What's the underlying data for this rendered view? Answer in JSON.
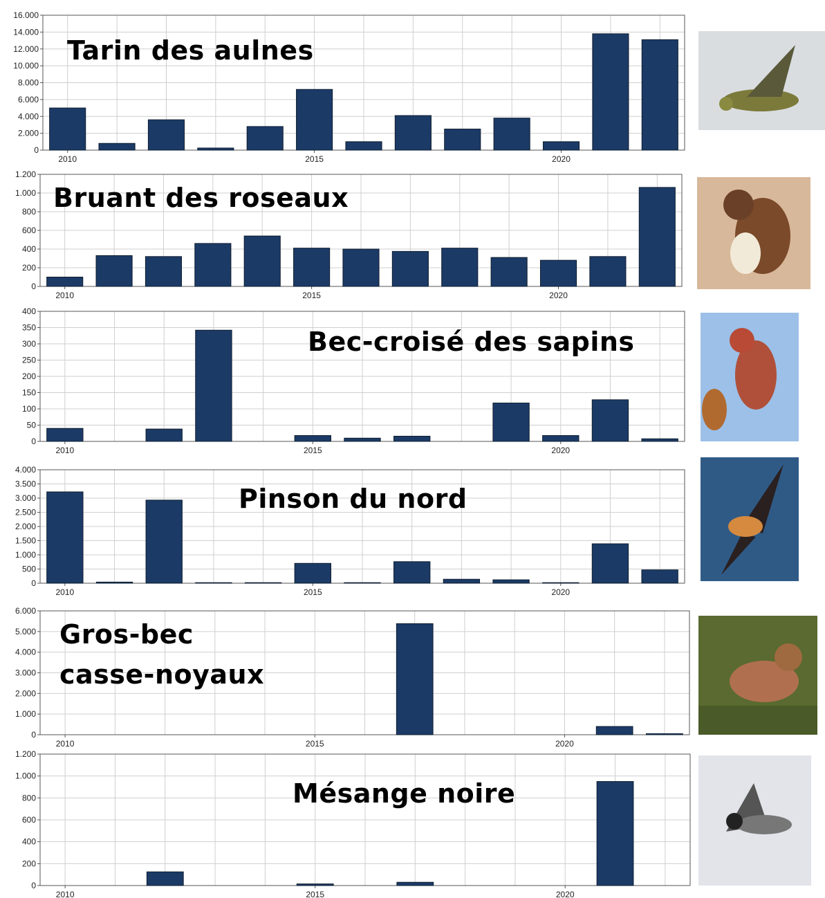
{
  "chart_data": [
    {
      "type": "bar",
      "title": "Tarin des aulnes",
      "x": [
        2010,
        2011,
        2012,
        2013,
        2014,
        2015,
        2016,
        2017,
        2018,
        2019,
        2020,
        2021,
        2022
      ],
      "values": [
        5000,
        800,
        3600,
        250,
        2800,
        7200,
        1000,
        4100,
        2500,
        3800,
        1000,
        13800,
        13100
      ],
      "color": "#1c3a66",
      "xlim": [
        2009.5,
        2022.5
      ],
      "xticks": [
        2010,
        2015,
        2020
      ],
      "ylim": [
        0,
        16000
      ],
      "yticks": [
        0,
        {
          "value": 2000,
          "label": "2.000"
        },
        {
          "value": 4000,
          "label": "4.000"
        },
        {
          "value": 6000,
          "label": "6.000"
        },
        {
          "value": 8000,
          "label": "8.000"
        },
        {
          "value": 10000,
          "label": "10.000"
        },
        {
          "value": 12000,
          "label": "12.000"
        },
        {
          "value": 14000,
          "label": "14.000"
        },
        {
          "value": 16000,
          "label": "16.000"
        }
      ],
      "grid": true
    },
    {
      "type": "bar",
      "title": "Bruant des roseaux",
      "x": [
        2010,
        2011,
        2012,
        2013,
        2014,
        2015,
        2016,
        2017,
        2018,
        2019,
        2020,
        2021,
        2022
      ],
      "values": [
        100,
        330,
        320,
        460,
        540,
        410,
        400,
        375,
        410,
        310,
        280,
        320,
        1060
      ],
      "color": "#1c3a66",
      "xlim": [
        2009.5,
        2022.5
      ],
      "xticks": [
        2010,
        2015,
        2020
      ],
      "ylim": [
        0,
        1200
      ],
      "yticks": [
        0,
        200,
        400,
        600,
        800,
        {
          "value": 1000,
          "label": "1.000"
        },
        {
          "value": 1200,
          "label": "1.200"
        }
      ],
      "grid": true
    },
    {
      "type": "bar",
      "title": "Bec-croisé des sapins",
      "x": [
        2010,
        2011,
        2012,
        2013,
        2014,
        2015,
        2016,
        2017,
        2018,
        2019,
        2020,
        2021,
        2022
      ],
      "values": [
        40,
        0,
        38,
        342,
        0,
        18,
        10,
        16,
        0,
        118,
        18,
        128,
        8
      ],
      "color": "#1c3a66",
      "xlim": [
        2009.5,
        2022.5
      ],
      "xticks": [
        2010,
        2015,
        2020
      ],
      "ylim": [
        0,
        400
      ],
      "yticks": [
        0,
        50,
        100,
        150,
        200,
        250,
        300,
        350,
        400
      ],
      "grid": true
    },
    {
      "type": "bar",
      "title": "Pinson du nord",
      "x": [
        2010,
        2011,
        2012,
        2013,
        2014,
        2015,
        2016,
        2017,
        2018,
        2019,
        2020,
        2021,
        2022
      ],
      "values": [
        3220,
        40,
        2930,
        20,
        20,
        700,
        20,
        760,
        140,
        120,
        20,
        1390,
        470
      ],
      "color": "#1c3a66",
      "xlim": [
        2009.5,
        2022.5
      ],
      "xticks": [
        2010,
        2015,
        2020
      ],
      "ylim": [
        0,
        4000
      ],
      "yticks": [
        0,
        500,
        {
          "value": 1000,
          "label": "1.000"
        },
        {
          "value": 1500,
          "label": "1.500"
        },
        {
          "value": 2000,
          "label": "2.000"
        },
        {
          "value": 2500,
          "label": "2.500"
        },
        {
          "value": 3000,
          "label": "3.000"
        },
        {
          "value": 3500,
          "label": "3.500"
        },
        {
          "value": 4000,
          "label": "4.000"
        }
      ],
      "grid": true
    },
    {
      "type": "bar",
      "title": "Gros-bec casse-noyaux",
      "x": [
        2010,
        2011,
        2012,
        2013,
        2014,
        2015,
        2016,
        2017,
        2018,
        2019,
        2020,
        2021,
        2022
      ],
      "values": [
        0,
        0,
        0,
        0,
        0,
        0,
        0,
        5380,
        0,
        0,
        0,
        400,
        50
      ],
      "color": "#1c3a66",
      "xlim": [
        2009.5,
        2022.5
      ],
      "xticks": [
        2010,
        2015,
        2020
      ],
      "ylim": [
        0,
        6000
      ],
      "yticks": [
        0,
        {
          "value": 1000,
          "label": "1.000"
        },
        {
          "value": 2000,
          "label": "2.000"
        },
        {
          "value": 3000,
          "label": "3.000"
        },
        {
          "value": 4000,
          "label": "4.000"
        },
        {
          "value": 5000,
          "label": "5.000"
        },
        {
          "value": 6000,
          "label": "6.000"
        }
      ],
      "grid": true
    },
    {
      "type": "bar",
      "title": "Mésange noire",
      "x": [
        2010,
        2011,
        2012,
        2013,
        2014,
        2015,
        2016,
        2017,
        2018,
        2019,
        2020,
        2021,
        2022
      ],
      "values": [
        0,
        0,
        125,
        0,
        0,
        15,
        0,
        30,
        0,
        0,
        0,
        950,
        0
      ],
      "color": "#1c3a66",
      "xlim": [
        2009.5,
        2022.5
      ],
      "xticks": [
        2010,
        2015,
        2020
      ],
      "ylim": [
        0,
        1200
      ],
      "yticks": [
        0,
        200,
        400,
        600,
        800,
        {
          "value": 1000,
          "label": "1.000"
        },
        {
          "value": 1200,
          "label": "1.200"
        }
      ],
      "grid": true
    }
  ]
}
